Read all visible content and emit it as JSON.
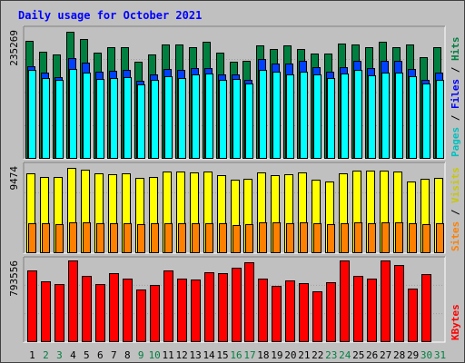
{
  "chart_data": {
    "type": "bar",
    "title": "Daily usage for October 2021",
    "categories": [
      "1",
      "2",
      "3",
      "4",
      "5",
      "6",
      "7",
      "8",
      "9",
      "10",
      "11",
      "12",
      "13",
      "14",
      "15",
      "16",
      "17",
      "18",
      "19",
      "20",
      "21",
      "22",
      "23",
      "24",
      "25",
      "26",
      "27",
      "28",
      "29",
      "30",
      "31"
    ],
    "weekend_days": [
      "2",
      "3",
      "9",
      "10",
      "16",
      "17",
      "23",
      "24",
      "30",
      "31"
    ],
    "panels": [
      {
        "ymax_label": "235269",
        "ymax": 235269,
        "side_label": [
          "Pages",
          "Files",
          "Hits"
        ],
        "series": [
          {
            "name": "Hits",
            "color": "#008040",
            "values": [
              218000,
              198000,
              194000,
              235269,
              222000,
              197000,
              206000,
              206000,
              179000,
              194000,
              212000,
              212000,
              207000,
              216000,
              197000,
              180000,
              181000,
              210000,
              203000,
              210000,
              204000,
              195000,
              195000,
              213000,
              211000,
              207000,
              216000,
              206000,
              212000,
              188000,
              206000
            ]
          },
          {
            "name": "Files",
            "color": "#0040ff",
            "values": [
              172000,
              160000,
              151000,
              187000,
              178000,
              161000,
              163000,
              164000,
              145000,
              156000,
              167000,
              164000,
              168000,
              168000,
              157000,
              156000,
              146000,
              185000,
              176000,
              177000,
              181000,
              170000,
              161000,
              169000,
              181000,
              168000,
              181000,
              181000,
              166000,
              147000,
              159000
            ]
          },
          {
            "name": "Pages",
            "color": "#00ffff",
            "values": [
              164000,
              150000,
              147000,
              167000,
              160000,
              148000,
              150000,
              152000,
              137000,
              147000,
              153000,
              150000,
              156000,
              158000,
              147000,
              148000,
              140000,
              165000,
              161000,
              157000,
              161000,
              156000,
              150000,
              158000,
              165000,
              154000,
              159000,
              160000,
              153000,
              140000,
              147000
            ]
          }
        ]
      },
      {
        "ymax_label": "9474",
        "ymax": 9474,
        "side_label": [
          "Sites",
          "Visits"
        ],
        "series": [
          {
            "name": "Visits",
            "color": "#ffff00",
            "values": [
              8900,
              8500,
              8500,
              9474,
              9300,
              8900,
              8800,
              8900,
              8400,
              8500,
              9100,
              9100,
              9000,
              9100,
              8700,
              8200,
              8300,
              9000,
              8700,
              8800,
              9000,
              8200,
              8000,
              8900,
              9200,
              9200,
              9200,
              9100,
              8000,
              8300,
              8400
            ]
          },
          {
            "name": "Sites",
            "color": "#ff8000",
            "values": [
              3300,
              3300,
              3200,
              3400,
              3400,
              3300,
              3300,
              3300,
              3200,
              3300,
              3300,
              3300,
              3300,
              3300,
              3300,
              3100,
              3200,
              3400,
              3400,
              3300,
              3400,
              3300,
              3200,
              3300,
              3400,
              3300,
              3400,
              3400,
              3300,
              3200,
              3300
            ]
          }
        ]
      },
      {
        "ymax_label": "793556",
        "ymax": 793556,
        "side_label": [
          "KBytes"
        ],
        "series": [
          {
            "name": "KBytes",
            "color": "#ff0000",
            "values": [
              694000,
              592000,
              565000,
              793556,
              645000,
              565000,
              668000,
              615000,
              512000,
              553000,
              695000,
              619000,
              610000,
              679000,
              667000,
              727000,
              780000,
              615000,
              549000,
              600000,
              573000,
              494000,
              582000,
              792000,
              643000,
              615000,
              793000,
              752000,
              516000,
              659000,
              0
            ]
          }
        ]
      }
    ],
    "colors": {
      "background": "#c0c0c0",
      "title": "#0000ff",
      "weekday_label": "#000000",
      "weekend_label": "#008040",
      "pages": "#00c0c0",
      "files": "#0000ff",
      "hits": "#008040",
      "sites": "#ff8000",
      "visits": "#c8c800",
      "kbytes": "#ff0000"
    }
  }
}
